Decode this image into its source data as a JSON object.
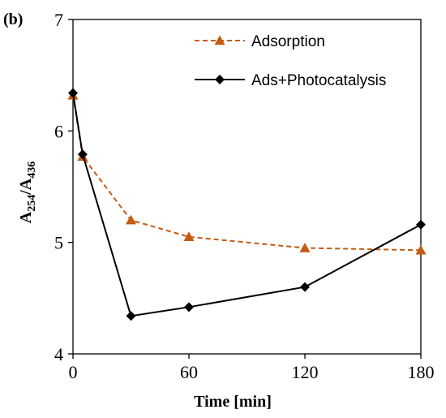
{
  "chart_data": {
    "type": "line",
    "panel_label": "(b)",
    "xlabel": "Time [min]",
    "ylabel_main": "A",
    "ylabel_sub1": "254",
    "ylabel_sep": "/A",
    "ylabel_sub2": "436",
    "xlim": [
      0,
      180
    ],
    "ylim": [
      4,
      7
    ],
    "xticks": [
      0,
      60,
      120,
      180
    ],
    "yticks": [
      4,
      5,
      6,
      7
    ],
    "grid": false,
    "legend_position": "top-right",
    "series": [
      {
        "name": "Adsorption",
        "color": "#c55a11",
        "line_style": "dashed",
        "marker": "triangle",
        "x": [
          0,
          5,
          30,
          60,
          120,
          180
        ],
        "y": [
          6.32,
          5.77,
          5.2,
          5.05,
          4.95,
          4.93
        ]
      },
      {
        "name": "Ads+Photocatalysis",
        "color": "#000000",
        "line_style": "solid",
        "marker": "diamond",
        "x": [
          0,
          5,
          30,
          60,
          120,
          180
        ],
        "y": [
          6.34,
          5.79,
          4.34,
          4.42,
          4.6,
          5.16
        ]
      }
    ]
  }
}
